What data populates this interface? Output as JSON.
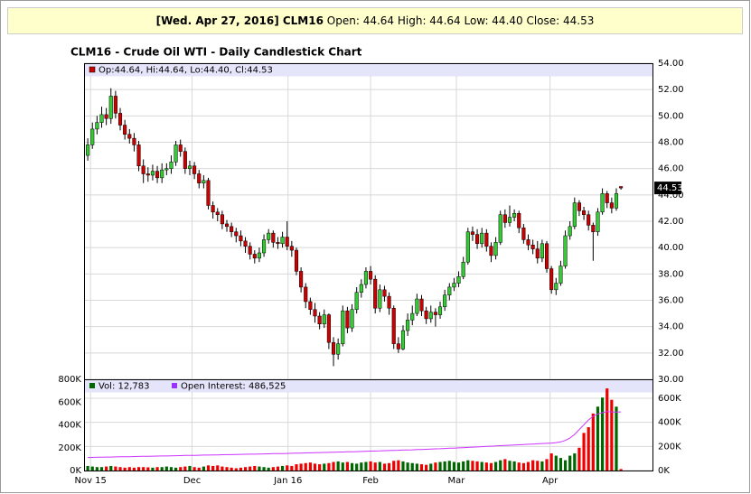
{
  "banner": {
    "head": "[Wed. Apr 27, 2016] CLM16",
    "rest": "Open: 44.64 High: 44.64 Low: 44.40 Close: 44.53"
  },
  "chart_data": [
    {
      "type": "candlestick",
      "title": "CLM16 - Crude Oil WTI - Daily Candlestick Chart",
      "legend_text": "Op:44.64, Hi:44.64, Lo:44.40, Cl:44.53",
      "up_color": "#33cc33",
      "down_color": "#cc0000",
      "xlim": [
        -0.8,
        121.8
      ],
      "ylim": [
        30,
        54
      ],
      "xticks": [
        {
          "value": 0.6,
          "label": "Nov 15"
        },
        {
          "value": 22.5,
          "label": "Dec"
        },
        {
          "value": 43.2,
          "label": "Jan 16"
        },
        {
          "value": 61,
          "label": "Feb"
        },
        {
          "value": 79.5,
          "label": "Mar"
        },
        {
          "value": 99.7,
          "label": "Apr"
        }
      ],
      "yticks": [
        {
          "value": 30,
          "label": "30.00"
        },
        {
          "value": 32,
          "label": "32.00"
        },
        {
          "value": 34,
          "label": "34.00"
        },
        {
          "value": 36,
          "label": "36.00"
        },
        {
          "value": 38,
          "label": "38.00"
        },
        {
          "value": 40,
          "label": "40.00"
        },
        {
          "value": 42,
          "label": "42.00"
        },
        {
          "value": 44,
          "label": "44.00"
        },
        {
          "value": 46,
          "label": "46.00"
        },
        {
          "value": 48,
          "label": "48.00"
        },
        {
          "value": 50,
          "label": "50.00"
        },
        {
          "value": 52,
          "label": "52.00"
        },
        {
          "value": 54,
          "label": "54.00"
        }
      ],
      "grid": true,
      "open": [
        47.0,
        47.8,
        49.0,
        49.5,
        50.1,
        49.8,
        51.5,
        50.2,
        49.3,
        48.6,
        48.3,
        47.8,
        46.2,
        45.6,
        45.5,
        45.8,
        45.3,
        45.9,
        46.0,
        46.5,
        47.8,
        47.3,
        46.0,
        46.2,
        45.6,
        44.9,
        45.1,
        43.2,
        42.7,
        42.5,
        41.8,
        41.6,
        41.2,
        40.9,
        40.5,
        40.1,
        39.5,
        39.2,
        39.6,
        40.6,
        41.1,
        40.4,
        40.3,
        40.8,
        40.1,
        39.8,
        38.2,
        37.0,
        35.9,
        35.3,
        34.8,
        34.2,
        34.9,
        32.8,
        31.9,
        32.7,
        35.2,
        33.9,
        35.3,
        36.6,
        37.2,
        38.2,
        37.6,
        35.4,
        36.8,
        36.3,
        35.4,
        32.7,
        32.3,
        33.7,
        34.5,
        35.0,
        36.1,
        35.2,
        34.6,
        35.1,
        34.9,
        35.5,
        36.4,
        37.0,
        37.3,
        37.8,
        38.9,
        41.2,
        41.0,
        40.3,
        41.1,
        40.1,
        39.4,
        40.4,
        42.5,
        41.9,
        42.3,
        42.6,
        41.5,
        40.6,
        40.2,
        39.9,
        39.2,
        40.3,
        38.4,
        36.8,
        37.3,
        38.6,
        40.9,
        41.6,
        43.4,
        42.8,
        42.5,
        41.7,
        41.2,
        42.7,
        44.1,
        43.4,
        43.0,
        44.64
      ],
      "high": [
        48.3,
        49.5,
        50.0,
        50.7,
        50.6,
        52.1,
        51.9,
        50.6,
        49.7,
        49.0,
        48.7,
        48.1,
        46.7,
        46.1,
        46.3,
        46.2,
        46.4,
        46.4,
        47.0,
        48.1,
        48.2,
        47.6,
        46.6,
        46.5,
        45.9,
        45.5,
        45.3,
        43.5,
        43.0,
        42.8,
        42.1,
        41.9,
        41.5,
        41.3,
        40.8,
        40.4,
        39.8,
        40.0,
        41.0,
        41.4,
        41.3,
        40.8,
        41.2,
        42.0,
        40.5,
        40.0,
        38.5,
        37.3,
        36.2,
        35.8,
        35.1,
        35.3,
        35.0,
        33.2,
        33.1,
        35.6,
        35.5,
        35.7,
        37.0,
        37.6,
        38.5,
        38.6,
        37.9,
        37.2,
        37.1,
        36.6,
        35.6,
        33.2,
        34.1,
        35.0,
        35.6,
        36.5,
        36.4,
        35.5,
        35.6,
        35.4,
        35.9,
        36.8,
        37.3,
        37.7,
        38.2,
        39.3,
        41.5,
        41.6,
        41.4,
        41.5,
        41.4,
        40.4,
        40.8,
        42.8,
        42.9,
        43.2,
        42.9,
        42.8,
        41.8,
        41.0,
        40.6,
        40.5,
        40.6,
        40.5,
        38.6,
        37.7,
        39.0,
        41.3,
        42.0,
        43.8,
        43.6,
        43.1,
        42.8,
        41.9,
        43.0,
        44.5,
        44.3,
        43.8,
        44.5,
        44.64
      ],
      "low": [
        46.6,
        47.5,
        48.6,
        49.1,
        49.3,
        49.4,
        49.8,
        48.9,
        48.2,
        47.9,
        47.3,
        45.8,
        44.9,
        45.0,
        45.1,
        44.9,
        44.9,
        45.5,
        45.6,
        46.2,
        46.9,
        45.6,
        45.5,
        45.2,
        44.5,
        44.5,
        42.9,
        42.2,
        42.0,
        41.4,
        41.2,
        40.8,
        40.4,
        40.1,
        39.6,
        39.1,
        38.8,
        38.9,
        39.3,
        40.3,
        40.0,
        39.9,
        40.0,
        39.8,
        39.3,
        37.9,
        36.6,
        35.4,
        34.9,
        34.3,
        33.8,
        33.9,
        32.3,
        31.0,
        31.5,
        32.5,
        33.5,
        33.6,
        35.0,
        36.2,
        36.9,
        37.2,
        35.0,
        35.1,
        35.9,
        34.9,
        32.3,
        32.0,
        32.2,
        33.3,
        34.1,
        34.8,
        34.8,
        34.2,
        34.3,
        34.0,
        34.6,
        35.2,
        36.0,
        36.7,
        37.0,
        37.6,
        38.7,
        40.5,
        39.9,
        40.0,
        39.7,
        38.9,
        39.1,
        40.2,
        41.5,
        41.6,
        42.0,
        41.1,
        40.3,
        39.8,
        39.5,
        38.8,
        38.9,
        38.1,
        36.5,
        36.4,
        37.1,
        38.4,
        40.6,
        41.4,
        42.4,
        42.1,
        41.3,
        39.0,
        40.9,
        42.5,
        43.0,
        42.6,
        42.8,
        44.4
      ],
      "close": [
        47.8,
        49.0,
        49.5,
        50.1,
        49.8,
        51.5,
        50.2,
        49.3,
        48.6,
        48.3,
        47.8,
        46.2,
        45.6,
        45.5,
        45.8,
        45.3,
        45.9,
        46.0,
        46.5,
        47.8,
        47.3,
        46.0,
        46.2,
        45.6,
        44.9,
        45.1,
        43.2,
        42.7,
        42.5,
        41.8,
        41.6,
        41.2,
        40.9,
        40.5,
        40.1,
        39.5,
        39.2,
        39.6,
        40.6,
        41.1,
        40.4,
        40.3,
        40.8,
        40.1,
        39.8,
        38.2,
        37.0,
        35.9,
        35.3,
        34.8,
        34.2,
        34.9,
        32.8,
        31.9,
        32.7,
        35.2,
        33.9,
        35.3,
        36.6,
        37.2,
        38.2,
        37.6,
        35.4,
        36.8,
        36.3,
        35.4,
        32.7,
        32.3,
        33.7,
        34.5,
        35.0,
        36.1,
        35.2,
        34.6,
        35.1,
        34.9,
        35.5,
        36.4,
        37.0,
        37.3,
        37.8,
        38.9,
        41.2,
        41.0,
        40.3,
        41.1,
        40.1,
        39.4,
        40.4,
        42.5,
        41.9,
        42.3,
        42.6,
        41.5,
        40.6,
        40.2,
        39.9,
        39.2,
        40.3,
        38.4,
        36.8,
        37.3,
        38.6,
        40.9,
        41.6,
        43.4,
        42.8,
        42.5,
        41.7,
        41.2,
        42.7,
        44.1,
        43.4,
        43.0,
        44.1,
        44.53
      ]
    },
    {
      "type": "bar",
      "ylim": [
        0,
        800000
      ],
      "y2lim": [
        0,
        757500
      ],
      "yticks": [
        {
          "value": 0,
          "label": "0K"
        },
        {
          "value": 200000,
          "label": "200K"
        },
        {
          "value": 400000,
          "label": "400K"
        },
        {
          "value": 600000,
          "label": "600K"
        },
        {
          "value": 800000,
          "label": "800K"
        }
      ],
      "y2ticks": [
        {
          "value": 0,
          "label": "0K"
        },
        {
          "value": 200000,
          "label": "200K"
        },
        {
          "value": 400000,
          "label": "400K"
        },
        {
          "value": 600000,
          "label": "600K"
        }
      ],
      "series": [
        {
          "name": "Vol: 12,783",
          "up_color": "#006600",
          "down_color": "#ee0000",
          "values": [
            40000,
            35000,
            30000,
            30000,
            35000,
            40000,
            35000,
            30000,
            25000,
            30000,
            25000,
            30000,
            30000,
            28000,
            25000,
            30000,
            30000,
            35000,
            30000,
            25000,
            30000,
            35000,
            40000,
            30000,
            25000,
            35000,
            45000,
            40000,
            45000,
            35000,
            30000,
            25000,
            20000,
            25000,
            30000,
            35000,
            40000,
            35000,
            30000,
            25000,
            30000,
            35000,
            40000,
            45000,
            40000,
            55000,
            60000,
            65000,
            70000,
            60000,
            55000,
            60000,
            65000,
            75000,
            80000,
            70000,
            75000,
            65000,
            60000,
            70000,
            75000,
            80000,
            70000,
            75000,
            60000,
            65000,
            85000,
            90000,
            80000,
            70000,
            65000,
            60000,
            55000,
            50000,
            60000,
            70000,
            75000,
            80000,
            85000,
            75000,
            70000,
            80000,
            90000,
            85000,
            80000,
            75000,
            70000,
            65000,
            75000,
            90000,
            100000,
            85000,
            80000,
            70000,
            65000,
            75000,
            90000,
            85000,
            80000,
            100000,
            150000,
            130000,
            110000,
            90000,
            130000,
            150000,
            200000,
            330000,
            380000,
            500000,
            560000,
            640000,
            720000,
            620000,
            560000,
            12783
          ]
        },
        {
          "name": "Open Interest: 486,525",
          "color": "#cc33ff",
          "axis": "y2",
          "values": [
            108000,
            109000,
            110000,
            111000,
            112000,
            112000,
            113000,
            114000,
            115000,
            115000,
            116000,
            117000,
            118000,
            118000,
            119000,
            120000,
            121000,
            121000,
            122000,
            123000,
            124000,
            125000,
            125000,
            126000,
            127000,
            128000,
            128000,
            129000,
            130000,
            131000,
            132000,
            132000,
            133000,
            134000,
            135000,
            136000,
            136000,
            137000,
            138000,
            139000,
            140000,
            140000,
            141000,
            142000,
            143000,
            144000,
            145000,
            146000,
            147000,
            148000,
            149000,
            150000,
            151000,
            152000,
            153000,
            154000,
            155000,
            156000,
            157000,
            158000,
            160000,
            161000,
            162000,
            163000,
            165000,
            166000,
            167000,
            168000,
            170000,
            171000,
            172000,
            174000,
            175000,
            176000,
            178000,
            180000,
            181000,
            183000,
            185000,
            186000,
            188000,
            190000,
            192000,
            194000,
            196000,
            198000,
            200000,
            202000,
            204000,
            206000,
            208000,
            210000,
            212000,
            214000,
            216000,
            218000,
            220000,
            222000,
            224000,
            226000,
            228000,
            232000,
            238000,
            250000,
            270000,
            300000,
            340000,
            380000,
            420000,
            450000,
            470000,
            480000,
            490000,
            487000,
            485000,
            486525
          ]
        }
      ]
    }
  ]
}
